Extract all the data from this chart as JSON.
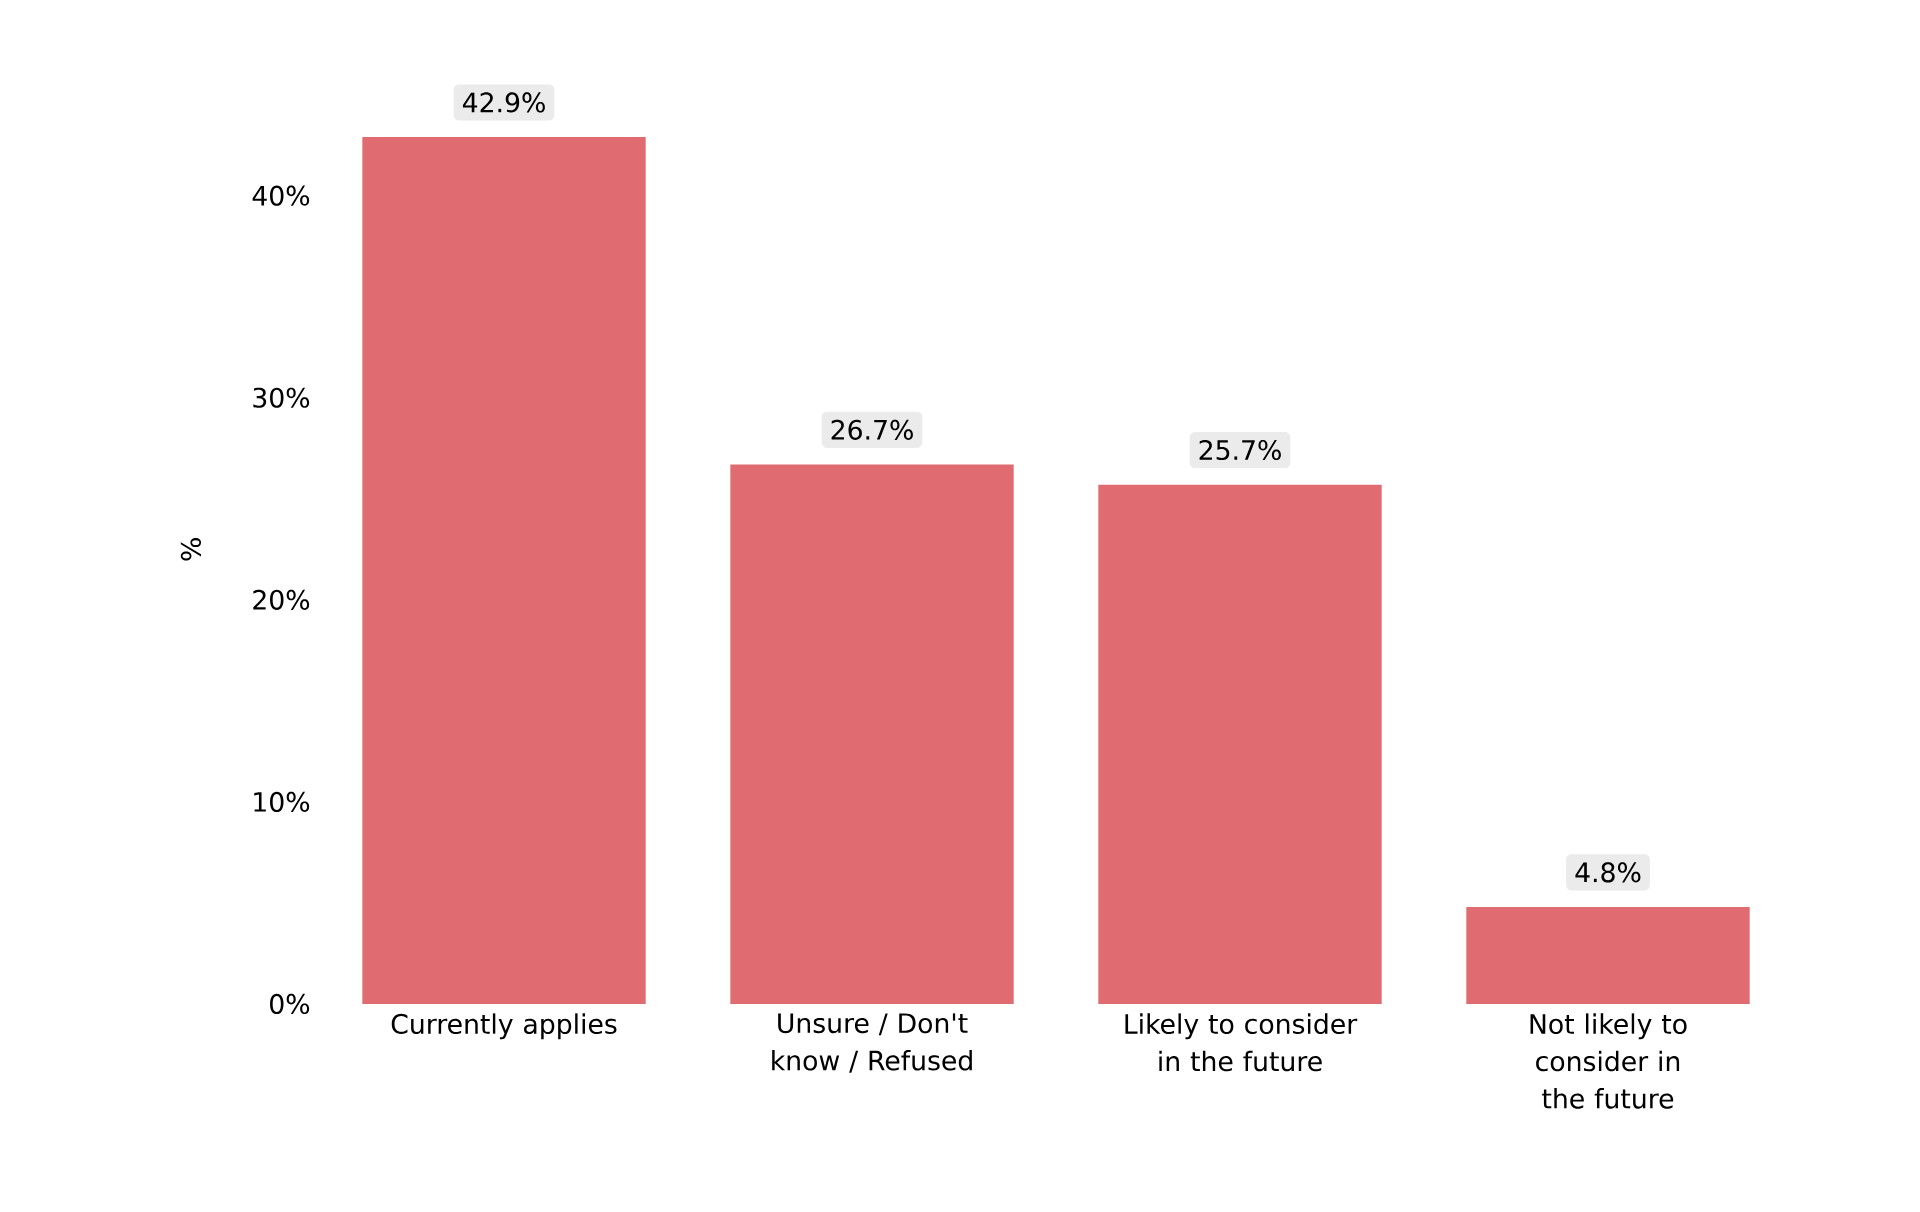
{
  "chart_data": {
    "type": "bar",
    "ylabel": "%",
    "categories": [
      "Currently applies",
      "Unsure / Don't know / Refused",
      "Likely to consider in the future",
      "Not likely to consider in the future"
    ],
    "values": [
      42.9,
      26.7,
      25.7,
      4.8
    ],
    "value_labels": [
      "42.9%",
      "26.7%",
      "25.7%",
      "4.8%"
    ],
    "color": "#e06b70",
    "ylim": [
      0,
      45
    ],
    "yticks": [
      {
        "value": 0,
        "label": "0%"
      },
      {
        "value": 10,
        "label": "10%"
      },
      {
        "value": 20,
        "label": "20%"
      },
      {
        "value": 30,
        "label": "30%"
      },
      {
        "value": 40,
        "label": "40%"
      }
    ],
    "grid": false
  }
}
